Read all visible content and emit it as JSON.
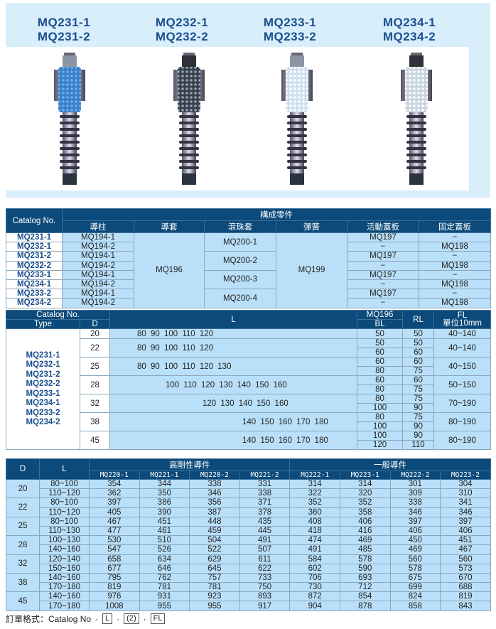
{
  "header": {
    "models": [
      [
        "MQ231-1",
        "MQ231-2"
      ],
      [
        "MQ232-1",
        "MQ232-2"
      ],
      [
        "MQ233-1",
        "MQ233-2"
      ],
      [
        "MQ234-1",
        "MQ234-2"
      ]
    ]
  },
  "colors": {
    "header_bg": "#0b4a7a",
    "cell_bg": "#b9e0f8",
    "title": "#1b4f8f",
    "panel": "#d9eefb"
  },
  "parts_table": {
    "catalog_header": "Catalog No.",
    "group_header": "構成零件",
    "columns": [
      "導柱",
      "導套",
      "滾珠套",
      "彈簧",
      "活動蓋板",
      "固定蓋板"
    ],
    "rows": [
      {
        "cat": "MQ231-1",
        "pillar": "MQ194-1",
        "movable": "MQ197",
        "fixed": "−"
      },
      {
        "cat": "MQ232-1",
        "pillar": "MQ194-2",
        "movable": "−",
        "fixed": "MQ198"
      },
      {
        "cat": "MQ231-2",
        "pillar": "MQ194-1",
        "movable": "MQ197",
        "fixed": "−"
      },
      {
        "cat": "MQ232-2",
        "pillar": "MQ194-2",
        "movable": "−",
        "fixed": "MQ198"
      },
      {
        "cat": "MQ233-1",
        "pillar": "MQ194-1",
        "movable": "MQ197",
        "fixed": "−"
      },
      {
        "cat": "MQ234-1",
        "pillar": "MQ194-2",
        "movable": "−",
        "fixed": "MQ198"
      },
      {
        "cat": "MQ233-2",
        "pillar": "MQ194-1",
        "movable": "MQ197",
        "fixed": "−"
      },
      {
        "cat": "MQ234-2",
        "pillar": "MQ194-2",
        "movable": "−",
        "fixed": "MQ198"
      }
    ],
    "bushing": "MQ196",
    "ball_cages": [
      "MQ200-1",
      "MQ200-2",
      "MQ200-3",
      "MQ200-4"
    ],
    "spring": "MQ199"
  },
  "size_table": {
    "h_catalog": "Catalog No.",
    "h_type": "Type",
    "h_d": "D",
    "h_l": "L",
    "h_mq196": "MQ196",
    "h_bl": "BL",
    "h_rl": "RL",
    "h_fl": "FL",
    "h_fl_unit": "單位10mm",
    "types": "MQ231-1\nMQ232-1\nMQ231-2\nMQ232-2\nMQ233-1\nMQ234-1\nMQ233-2\nMQ234-2",
    "rows": [
      {
        "d": "20",
        "l": "80 90 100 110 120",
        "bl": [
          "50"
        ],
        "rl": [
          "50"
        ],
        "fl": "40~140"
      },
      {
        "d": "22",
        "l": "80 90 100 110 120",
        "bl": [
          "50",
          "60"
        ],
        "rl": [
          "50",
          "60"
        ],
        "fl": "40~140"
      },
      {
        "d": "25",
        "l": "80 90 100 110 120 130",
        "bl": [
          "60",
          "80"
        ],
        "rl": [
          "60",
          "75"
        ],
        "fl": "40~150"
      },
      {
        "d": "28",
        "l": "100 110 120 130 140 150 160",
        "bl": [
          "60",
          "80"
        ],
        "rl": [
          "60",
          "75"
        ],
        "fl": "50~150"
      },
      {
        "d": "32",
        "l": "120 130 140 150 160",
        "bl": [
          "80",
          "100"
        ],
        "rl": [
          "75",
          "90"
        ],
        "fl": "70~190"
      },
      {
        "d": "38",
        "l": "140 150 160 170 180",
        "bl": [
          "80",
          "100"
        ],
        "rl": [
          "75",
          "90"
        ],
        "fl": "80~190"
      },
      {
        "d": "45",
        "l": "140 150 160 170 180",
        "bl": [
          "100",
          "120"
        ],
        "rl": [
          "90",
          "110"
        ],
        "fl": "80~190"
      }
    ]
  },
  "price_table": {
    "h_d": "D",
    "h_l": "L",
    "group_high": "高剛性導件",
    "group_general": "一般導件",
    "columns": [
      "MQ220-1",
      "MQ221-1",
      "MQ220-2",
      "MQ221-2",
      "MQ222-1",
      "MQ223-1",
      "MQ222-2",
      "MQ223-2"
    ],
    "groups": [
      {
        "d": "20",
        "rows": [
          {
            "l": "80~100",
            "v": [
              "354",
              "344",
              "338",
              "331",
              "314",
              "314",
              "301",
              "304"
            ]
          },
          {
            "l": "110~120",
            "v": [
              "362",
              "350",
              "346",
              "338",
              "322",
              "320",
              "309",
              "310"
            ]
          }
        ]
      },
      {
        "d": "22",
        "rows": [
          {
            "l": "80~100",
            "v": [
              "397",
              "386",
              "356",
              "371",
              "352",
              "352",
              "338",
              "341"
            ]
          },
          {
            "l": "110~120",
            "v": [
              "405",
              "390",
              "387",
              "378",
              "360",
              "358",
              "346",
              "346"
            ]
          }
        ]
      },
      {
        "d": "25",
        "rows": [
          {
            "l": "80~100",
            "v": [
              "467",
              "451",
              "448",
              "435",
              "408",
              "406",
              "397",
              "397"
            ]
          },
          {
            "l": "110~130",
            "v": [
              "477",
              "461",
              "459",
              "445",
              "418",
              "416",
              "406",
              "406"
            ]
          }
        ]
      },
      {
        "d": "28",
        "rows": [
          {
            "l": "100~130",
            "v": [
              "530",
              "510",
              "504",
              "491",
              "474",
              "469",
              "450",
              "451"
            ]
          },
          {
            "l": "140~160",
            "v": [
              "547",
              "526",
              "522",
              "507",
              "491",
              "485",
              "469",
              "467"
            ]
          }
        ]
      },
      {
        "d": "32",
        "rows": [
          {
            "l": "120~140",
            "v": [
              "658",
              "634",
              "629",
              "611",
              "584",
              "578",
              "560",
              "560"
            ]
          },
          {
            "l": "150~160",
            "v": [
              "677",
              "646",
              "645",
              "622",
              "602",
              "590",
              "578",
              "573"
            ]
          }
        ]
      },
      {
        "d": "38",
        "rows": [
          {
            "l": "140~160",
            "v": [
              "795",
              "762",
              "757",
              "733",
              "706",
              "693",
              "675",
              "670"
            ]
          },
          {
            "l": "170~180",
            "v": [
              "819",
              "781",
              "781",
              "750",
              "730",
              "712",
              "699",
              "688"
            ]
          }
        ]
      },
      {
        "d": "45",
        "rows": [
          {
            "l": "140~160",
            "v": [
              "976",
              "931",
              "923",
              "893",
              "872",
              "854",
              "824",
              "819"
            ]
          },
          {
            "l": "170~180",
            "v": [
              "1008",
              "955",
              "955",
              "917",
              "904",
              "878",
              "858",
              "843"
            ]
          }
        ]
      }
    ]
  },
  "footer": {
    "label": "訂單格式：Catalog No",
    "sep": "·",
    "box1": "L",
    "box2": "(2)",
    "box3": "FL"
  }
}
